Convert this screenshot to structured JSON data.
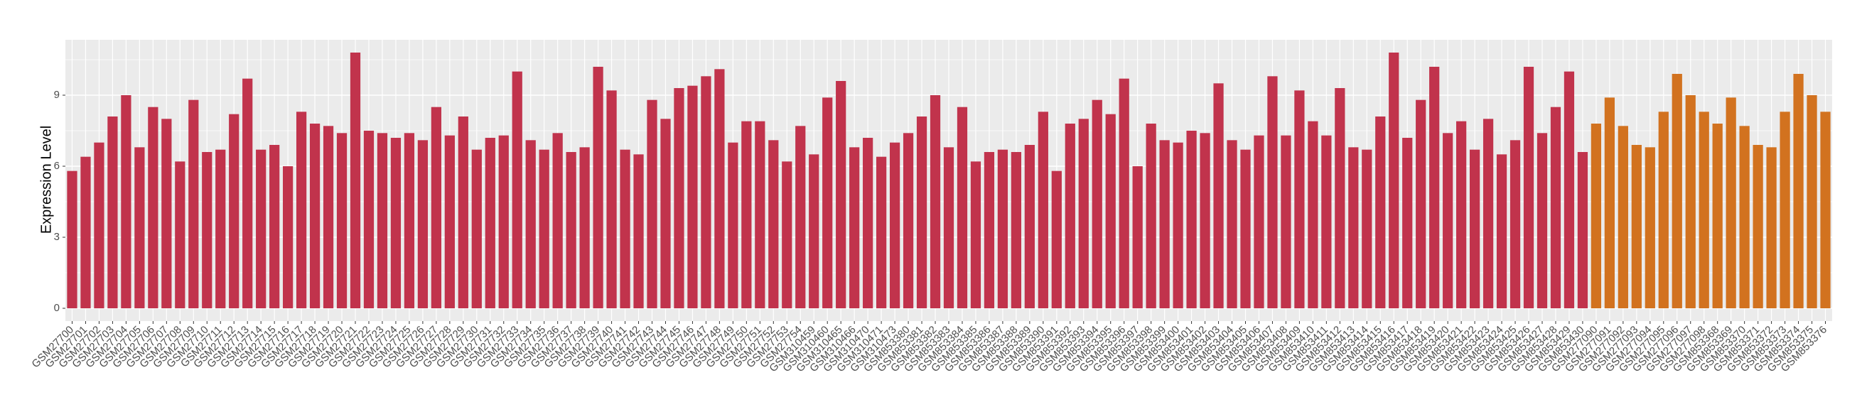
{
  "chart_data": {
    "type": "bar",
    "y_label": "Expression Level",
    "categories": [
      "GSM27700",
      "GSM27701",
      "GSM27702",
      "GSM27703",
      "GSM27704",
      "GSM27705",
      "GSM27706",
      "GSM27707",
      "GSM27708",
      "GSM27709",
      "GSM27710",
      "GSM27711",
      "GSM27712",
      "GSM27713",
      "GSM27714",
      "GSM27715",
      "GSM27716",
      "GSM27717",
      "GSM27718",
      "GSM27719",
      "GSM27720",
      "GSM27721",
      "GSM27722",
      "GSM27723",
      "GSM27724",
      "GSM27725",
      "GSM27726",
      "GSM27727",
      "GSM27728",
      "GSM27729",
      "GSM27730",
      "GSM27731",
      "GSM27732",
      "GSM27733",
      "GSM27734",
      "GSM27735",
      "GSM27736",
      "GSM27737",
      "GSM27738",
      "GSM27739",
      "GSM27740",
      "GSM27741",
      "GSM27742",
      "GSM27743",
      "GSM27744",
      "GSM27745",
      "GSM27746",
      "GSM27747",
      "GSM27748",
      "GSM27749",
      "GSM27750",
      "GSM27751",
      "GSM27752",
      "GSM27753",
      "GSM27754",
      "GSM310459",
      "GSM310460",
      "GSM310465",
      "GSM310466",
      "GSM310470",
      "GSM310471",
      "GSM310473",
      "GSM853380",
      "GSM853381",
      "GSM853382",
      "GSM853383",
      "GSM853384",
      "GSM853385",
      "GSM853386",
      "GSM853387",
      "GSM853388",
      "GSM853389",
      "GSM853390",
      "GSM853391",
      "GSM853392",
      "GSM853393",
      "GSM853394",
      "GSM853395",
      "GSM853396",
      "GSM853397",
      "GSM853398",
      "GSM853399",
      "GSM853400",
      "GSM853401",
      "GSM853402",
      "GSM853403",
      "GSM853404",
      "GSM853405",
      "GSM853406",
      "GSM853407",
      "GSM853408",
      "GSM853409",
      "GSM853410",
      "GSM853411",
      "GSM853412",
      "GSM853413",
      "GSM853414",
      "GSM853415",
      "GSM853416",
      "GSM853417",
      "GSM853418",
      "GSM853419",
      "GSM853420",
      "GSM853421",
      "GSM853422",
      "GSM853423",
      "GSM853424",
      "GSM853425",
      "GSM853426",
      "GSM853427",
      "GSM853428",
      "GSM853429",
      "GSM853430",
      "GSM277090",
      "GSM277091",
      "GSM277092",
      "GSM277093",
      "GSM277094",
      "GSM277095",
      "GSM277096",
      "GSM277097",
      "GSM277098",
      "GSM853368",
      "GSM853369",
      "GSM853370",
      "GSM853371",
      "GSM853372",
      "GSM853373",
      "GSM853374",
      "GSM853375",
      "GSM853376"
    ],
    "series": [
      {
        "color": "#c1334c",
        "values": [
          5.8,
          6.4,
          7.0,
          8.1,
          9.0,
          6.8,
          8.5,
          8.0,
          6.2,
          8.8,
          6.6,
          6.7,
          8.2,
          9.7,
          6.7,
          6.9,
          6.0,
          8.3,
          7.8,
          7.7,
          7.4,
          10.8,
          7.5,
          7.4,
          7.2,
          7.4,
          7.1,
          8.5,
          7.3,
          8.1,
          6.7,
          7.2,
          7.3,
          10.0,
          7.1,
          6.7,
          7.4,
          6.6,
          6.8,
          10.2,
          9.2,
          6.7,
          6.5,
          8.8,
          8.0,
          9.3,
          9.4,
          9.8,
          10.1,
          7.0,
          7.9,
          7.9,
          7.1,
          6.2,
          7.7,
          6.5,
          8.9,
          9.6,
          6.8,
          7.2,
          6.4,
          7.0,
          7.4,
          8.1,
          9.0,
          6.8,
          8.5,
          6.2,
          6.6,
          6.7,
          6.6,
          6.9,
          8.3,
          5.8,
          7.8,
          8.0,
          8.8,
          8.2,
          9.7,
          6.0,
          7.8,
          7.1,
          7.0,
          7.5,
          7.4,
          9.5,
          7.1,
          6.7,
          7.3,
          9.8,
          7.3,
          9.2,
          7.9,
          7.3,
          9.3,
          6.8,
          6.7,
          8.1,
          10.8,
          7.2,
          8.8,
          10.2,
          7.4,
          7.9,
          6.7,
          8.0,
          6.5,
          7.1,
          10.2,
          7.4,
          8.5,
          10.0,
          6.6,
          null,
          null,
          null,
          null,
          null,
          null,
          null,
          null,
          null,
          null,
          null,
          null,
          null,
          null,
          null,
          null,
          null,
          null
        ]
      },
      {
        "color": "#d2721f",
        "values": [
          null,
          null,
          null,
          null,
          null,
          null,
          null,
          null,
          null,
          null,
          null,
          null,
          null,
          null,
          null,
          null,
          null,
          null,
          null,
          null,
          null,
          null,
          null,
          null,
          null,
          null,
          null,
          null,
          null,
          null,
          null,
          null,
          null,
          null,
          null,
          null,
          null,
          null,
          null,
          null,
          null,
          null,
          null,
          null,
          null,
          null,
          null,
          null,
          null,
          null,
          null,
          null,
          null,
          null,
          null,
          null,
          null,
          null,
          null,
          null,
          null,
          null,
          null,
          null,
          null,
          null,
          null,
          null,
          null,
          null,
          null,
          null,
          null,
          null,
          null,
          null,
          null,
          null,
          null,
          null,
          null,
          null,
          null,
          null,
          null,
          null,
          null,
          null,
          null,
          null,
          null,
          null,
          null,
          null,
          null,
          null,
          null,
          null,
          null,
          null,
          null,
          null,
          null,
          null,
          null,
          null,
          null,
          null,
          null,
          null,
          null,
          null,
          null,
          7.8,
          8.9,
          7.7,
          6.9,
          6.8,
          8.3,
          9.9,
          9.0,
          8.3,
          7.8,
          8.9,
          7.7,
          6.9,
          6.8,
          8.3,
          9.9,
          9.0,
          8.3
        ]
      }
    ],
    "ylim": [
      -0.54,
      11.34
    ],
    "yticks": [
      0,
      3,
      6,
      9
    ],
    "grid": true,
    "background": "#ebebeb"
  }
}
